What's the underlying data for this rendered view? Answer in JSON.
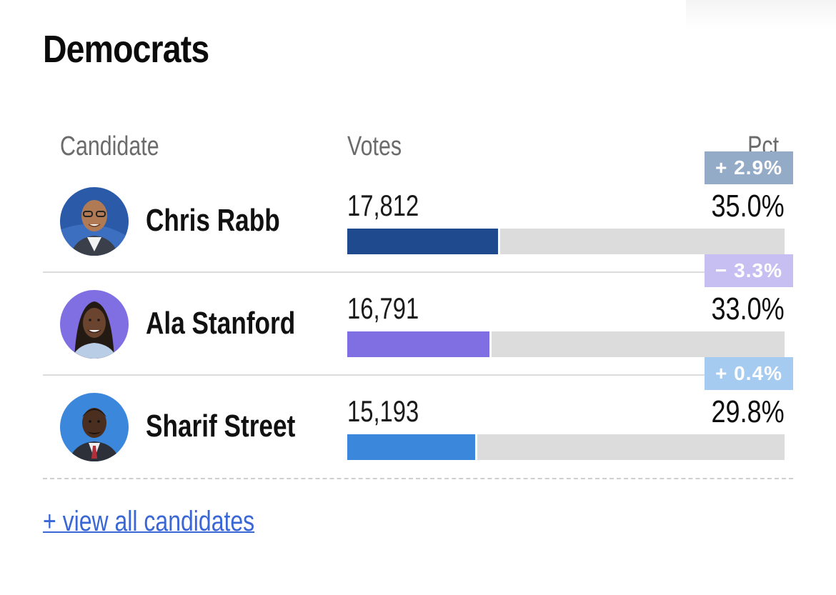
{
  "section": {
    "title": "Democrats"
  },
  "columns": {
    "candidate": "Candidate",
    "votes": "Votes",
    "pct": "Pct."
  },
  "candidates": [
    {
      "name": "Chris Rabb",
      "votes": "17,812",
      "pct": "35.0%",
      "pct_value": 35.0,
      "change": "+ 2.9%",
      "bar_color": "#1f4b8e",
      "badge_color": "#94abc8",
      "avatar": "chris-rabb-photo"
    },
    {
      "name": "Ala Stanford",
      "votes": "16,791",
      "pct": "33.0%",
      "pct_value": 33.0,
      "change": "− 3.3%",
      "bar_color": "#7f6fe3",
      "badge_color": "#c7bff2",
      "avatar": "ala-stanford-photo"
    },
    {
      "name": "Sharif Street",
      "votes": "15,193",
      "pct": "29.8%",
      "pct_value": 29.8,
      "change": "+ 0.4%",
      "bar_color": "#3b87dc",
      "badge_color": "#a6cbf1",
      "avatar": "sharif-street-photo"
    }
  ],
  "footer": {
    "view_all_label": "+ view all candidates"
  }
}
